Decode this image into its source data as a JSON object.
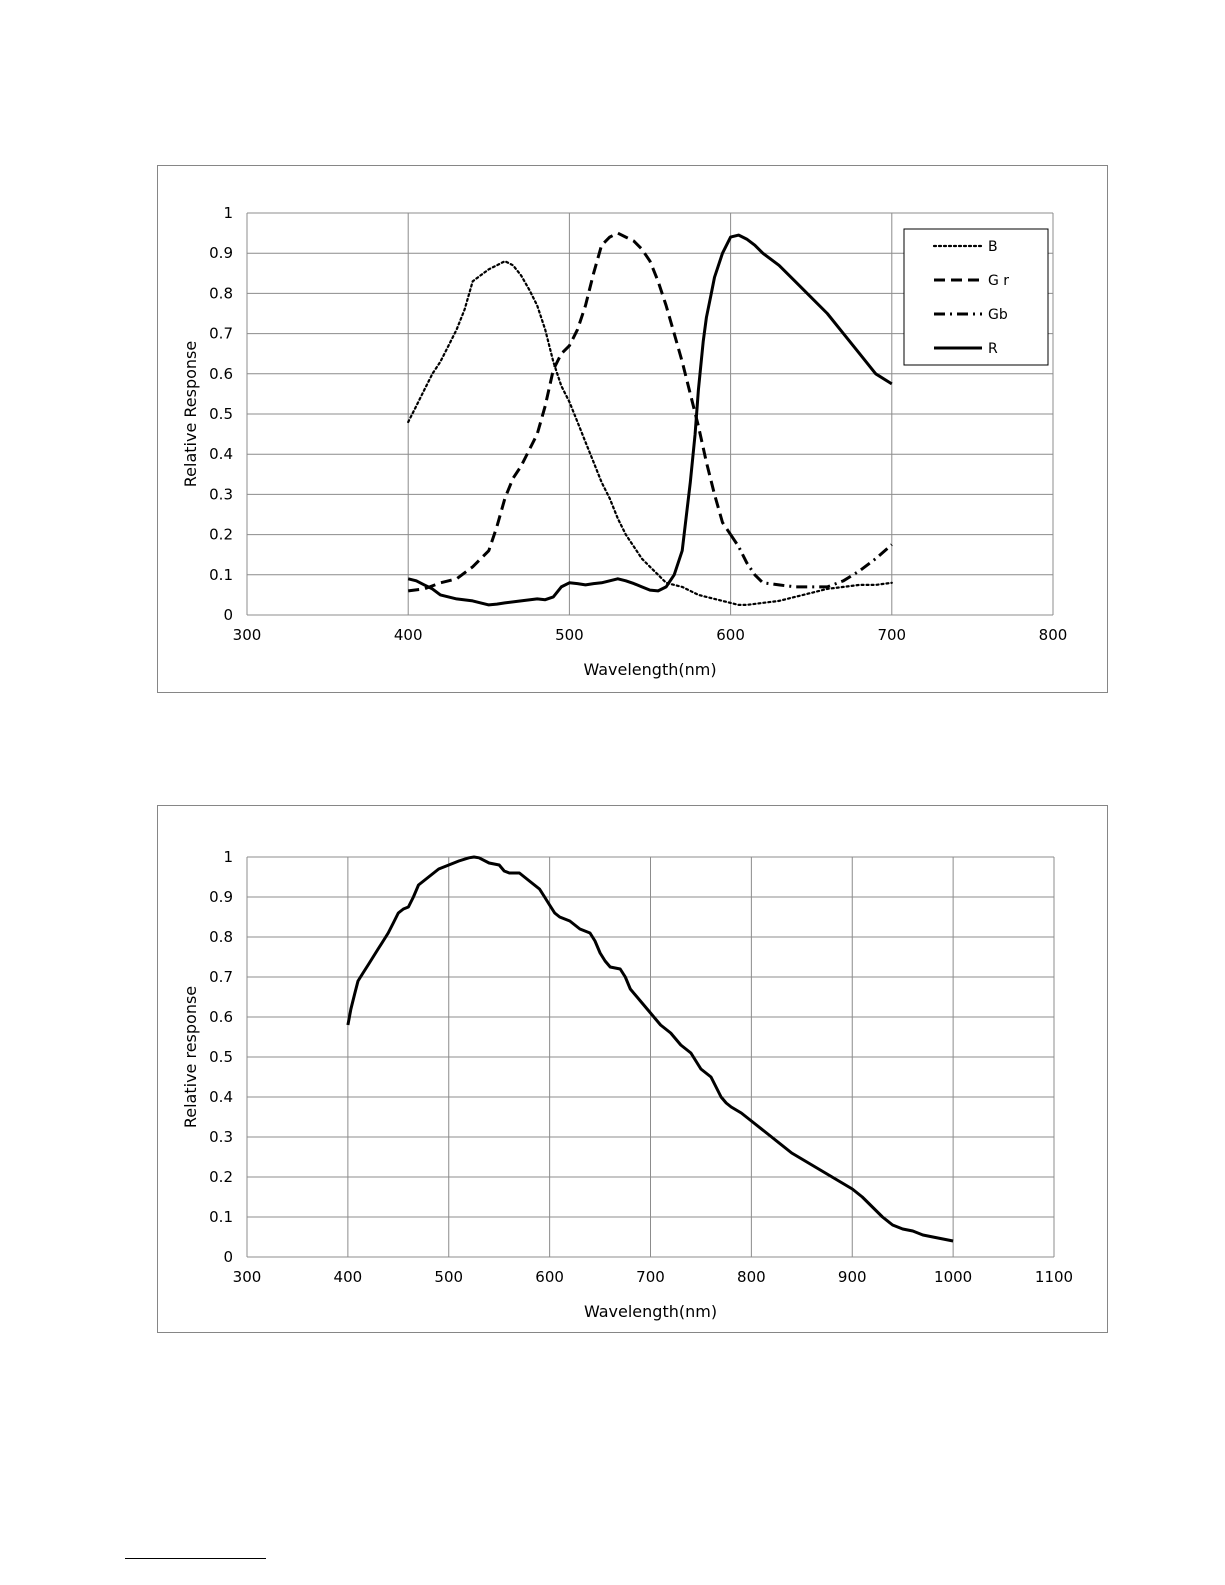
{
  "chart_data": [
    {
      "type": "line",
      "title": "",
      "xlabel": "Wavelength(nm)",
      "ylabel": "Relative Response",
      "xlim": [
        300,
        800
      ],
      "ylim": [
        0,
        1
      ],
      "x_ticks": [
        "300",
        "400",
        "500",
        "600",
        "700",
        "800"
      ],
      "y_ticks": [
        "0",
        "0.1",
        "0.2",
        "0.3",
        "0.4",
        "0.5",
        "0.6",
        "0.7",
        "0.8",
        "0.9",
        "1"
      ],
      "grid": true,
      "legend_position": "top-right",
      "series": [
        {
          "name": "B",
          "style": "dotted",
          "x": [
            400,
            405,
            410,
            415,
            420,
            425,
            430,
            435,
            440,
            445,
            450,
            455,
            460,
            465,
            470,
            475,
            480,
            485,
            490,
            495,
            500,
            505,
            510,
            515,
            520,
            525,
            530,
            535,
            540,
            545,
            550,
            555,
            560,
            565,
            570,
            575,
            580,
            585,
            590,
            595,
            600,
            605,
            610,
            620,
            630,
            640,
            650,
            660,
            670,
            680,
            690,
            700
          ],
          "y": [
            0.48,
            0.52,
            0.56,
            0.6,
            0.63,
            0.67,
            0.71,
            0.76,
            0.83,
            0.845,
            0.86,
            0.87,
            0.88,
            0.87,
            0.845,
            0.81,
            0.77,
            0.71,
            0.63,
            0.57,
            0.53,
            0.48,
            0.43,
            0.38,
            0.33,
            0.29,
            0.24,
            0.2,
            0.17,
            0.14,
            0.12,
            0.1,
            0.08,
            0.075,
            0.07,
            0.06,
            0.05,
            0.045,
            0.04,
            0.035,
            0.03,
            0.025,
            0.025,
            0.03,
            0.035,
            0.045,
            0.055,
            0.065,
            0.07,
            0.075,
            0.075,
            0.08
          ]
        },
        {
          "name": "G r",
          "style": "dashed",
          "x": [
            400,
            410,
            420,
            430,
            440,
            450,
            455,
            460,
            465,
            470,
            475,
            480,
            485,
            490,
            495,
            500,
            505,
            510,
            515,
            520,
            525,
            530,
            535,
            540,
            545,
            550,
            555,
            560,
            565,
            570,
            575,
            580,
            585,
            590,
            595,
            600
          ],
          "y": [
            0.06,
            0.065,
            0.08,
            0.09,
            0.12,
            0.16,
            0.22,
            0.29,
            0.34,
            0.37,
            0.41,
            0.45,
            0.52,
            0.61,
            0.65,
            0.67,
            0.71,
            0.77,
            0.85,
            0.92,
            0.94,
            0.95,
            0.94,
            0.93,
            0.91,
            0.88,
            0.83,
            0.77,
            0.7,
            0.63,
            0.55,
            0.47,
            0.38,
            0.3,
            0.23,
            0.2
          ]
        },
        {
          "name": "Gb",
          "style": "dash-dot",
          "x": [
            600,
            605,
            610,
            615,
            620,
            630,
            640,
            650,
            660,
            670,
            680,
            690,
            700
          ],
          "y": [
            0.2,
            0.17,
            0.13,
            0.1,
            0.08,
            0.075,
            0.07,
            0.07,
            0.07,
            0.085,
            0.11,
            0.14,
            0.175
          ]
        },
        {
          "name": "R",
          "style": "solid",
          "x": [
            400,
            405,
            410,
            415,
            420,
            425,
            430,
            440,
            445,
            450,
            455,
            460,
            470,
            480,
            485,
            490,
            495,
            500,
            505,
            510,
            515,
            520,
            525,
            530,
            535,
            540,
            545,
            550,
            555,
            560,
            565,
            570,
            575,
            578,
            580,
            583,
            585,
            588,
            590,
            595,
            600,
            605,
            610,
            615,
            620,
            630,
            640,
            650,
            660,
            670,
            680,
            690,
            700
          ],
          "y": [
            0.09,
            0.085,
            0.075,
            0.065,
            0.05,
            0.045,
            0.04,
            0.035,
            0.03,
            0.025,
            0.027,
            0.03,
            0.035,
            0.04,
            0.038,
            0.045,
            0.07,
            0.08,
            0.078,
            0.075,
            0.078,
            0.08,
            0.085,
            0.09,
            0.085,
            0.078,
            0.07,
            0.062,
            0.06,
            0.07,
            0.1,
            0.16,
            0.33,
            0.45,
            0.56,
            0.68,
            0.74,
            0.8,
            0.84,
            0.9,
            0.94,
            0.945,
            0.935,
            0.92,
            0.9,
            0.87,
            0.83,
            0.79,
            0.75,
            0.7,
            0.65,
            0.6,
            0.575
          ]
        }
      ]
    },
    {
      "type": "line",
      "title": "",
      "xlabel": "Wavelength(nm)",
      "ylabel": "Relative  response",
      "xlim": [
        300,
        1100
      ],
      "ylim": [
        0,
        1
      ],
      "x_ticks": [
        "300",
        "400",
        "500",
        "600",
        "700",
        "800",
        "900",
        "1000",
        "1100"
      ],
      "y_ticks": [
        "0",
        "0.1",
        "0.2",
        "0.3",
        "0.4",
        "0.5",
        "0.6",
        "0.7",
        "0.8",
        "0.9",
        "1"
      ],
      "grid": true,
      "series": [
        {
          "style": "solid",
          "x": [
            400,
            403,
            407,
            410,
            415,
            420,
            425,
            430,
            435,
            440,
            445,
            450,
            455,
            460,
            465,
            470,
            480,
            490,
            500,
            510,
            520,
            525,
            530,
            540,
            550,
            555,
            560,
            570,
            580,
            590,
            595,
            600,
            605,
            610,
            620,
            630,
            640,
            645,
            650,
            655,
            660,
            670,
            675,
            680,
            690,
            700,
            710,
            720,
            730,
            740,
            750,
            760,
            770,
            775,
            780,
            790,
            800,
            820,
            840,
            860,
            880,
            900,
            910,
            920,
            930,
            940,
            950,
            960,
            970,
            980,
            990,
            1000
          ],
          "y": [
            0.58,
            0.62,
            0.66,
            0.69,
            0.71,
            0.73,
            0.75,
            0.77,
            0.79,
            0.81,
            0.835,
            0.86,
            0.87,
            0.875,
            0.9,
            0.93,
            0.95,
            0.97,
            0.98,
            0.99,
            0.998,
            1.0,
            0.998,
            0.985,
            0.98,
            0.965,
            0.96,
            0.96,
            0.94,
            0.92,
            0.9,
            0.88,
            0.86,
            0.85,
            0.84,
            0.82,
            0.81,
            0.79,
            0.76,
            0.74,
            0.725,
            0.72,
            0.7,
            0.67,
            0.64,
            0.61,
            0.58,
            0.56,
            0.53,
            0.51,
            0.47,
            0.45,
            0.4,
            0.385,
            0.375,
            0.36,
            0.34,
            0.3,
            0.26,
            0.23,
            0.2,
            0.17,
            0.15,
            0.125,
            0.1,
            0.08,
            0.07,
            0.065,
            0.055,
            0.05,
            0.045,
            0.04
          ]
        }
      ]
    }
  ]
}
